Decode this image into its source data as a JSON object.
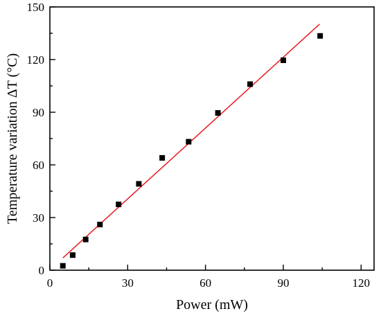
{
  "chart_data": {
    "type": "scatter",
    "xlabel": "Power (mW)",
    "ylabel": "Temperature variation ΔT (°C)",
    "xlim": [
      0,
      125
    ],
    "ylim": [
      0,
      150
    ],
    "xticks": [
      0,
      30,
      60,
      90,
      120
    ],
    "yticks": [
      0,
      30,
      60,
      90,
      120,
      150
    ],
    "xtick_labels": [
      "0",
      "30",
      "60",
      "90",
      "120"
    ],
    "ytick_labels": [
      "0",
      "30",
      "60",
      "90",
      "120",
      "150"
    ],
    "grid": false,
    "series": [
      {
        "marker": "square",
        "color": "#000000",
        "points": [
          {
            "x": 5.0,
            "y": 2.5
          },
          {
            "x": 8.8,
            "y": 8.6
          },
          {
            "x": 13.8,
            "y": 17.5
          },
          {
            "x": 19.3,
            "y": 26.0
          },
          {
            "x": 26.5,
            "y": 37.5
          },
          {
            "x": 34.3,
            "y": 49.2
          },
          {
            "x": 43.3,
            "y": 64.0
          },
          {
            "x": 53.5,
            "y": 73.2
          },
          {
            "x": 64.8,
            "y": 89.6
          },
          {
            "x": 77.2,
            "y": 106.0
          },
          {
            "x": 90.0,
            "y": 119.6
          },
          {
            "x": 104.2,
            "y": 133.5
          }
        ]
      }
    ],
    "fit_line": {
      "color": "#e8181e",
      "x": [
        5.0,
        104.0
      ],
      "y": [
        7.0,
        140.2
      ]
    }
  }
}
